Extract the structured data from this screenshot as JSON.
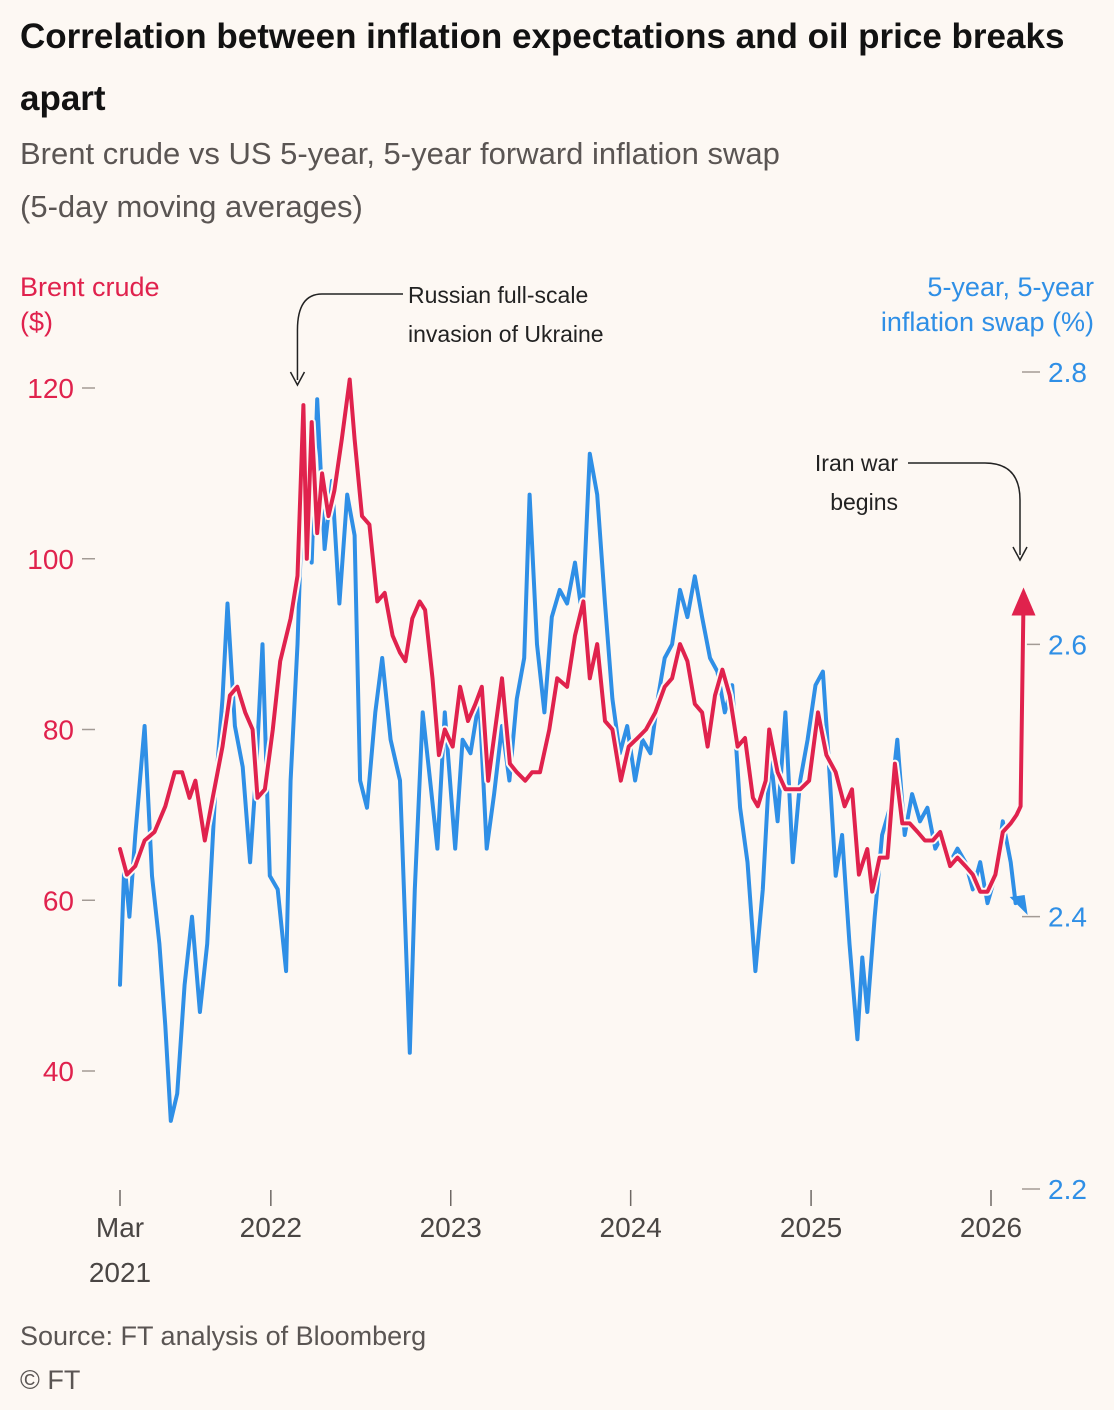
{
  "title": "Correlation between inflation expectations and oil price breaks apart",
  "subtitle_line1": "Brent crude vs US 5-year, 5-year forward inflation swap",
  "subtitle_line2": "(5-day moving averages)",
  "source": "Source: FT analysis of Bloomberg",
  "copyright": "© FT",
  "colors": {
    "brent": "#e0224d",
    "swap": "#2f8fe6",
    "background": "#fdf8f3"
  },
  "chart_data": {
    "type": "line",
    "left_axis": {
      "label_line1": "Brent crude",
      "label_line2": "($)",
      "ticks": [
        40,
        60,
        80,
        100,
        120
      ]
    },
    "right_axis": {
      "label_line1": "5-year,  5-year",
      "label_line2": "inflation swap (%)",
      "ticks": [
        2.2,
        2.4,
        2.6,
        2.8
      ]
    },
    "x_ticks": [
      {
        "date": "2021-03-01",
        "label": "Mar",
        "label2": "2021"
      },
      {
        "date": "2022-01-01",
        "label": "2022"
      },
      {
        "date": "2023-01-01",
        "label": "2023"
      },
      {
        "date": "2024-01-01",
        "label": "2024"
      },
      {
        "date": "2025-01-01",
        "label": "2025"
      },
      {
        "date": "2026-01-01",
        "label": "2026"
      }
    ],
    "annotations": [
      {
        "line1": "Russian full-scale",
        "line2": "invasion of Ukraine",
        "date": "2022-02-24"
      },
      {
        "line1": "Iran war",
        "line2": "begins",
        "date": "2026-03-01"
      }
    ],
    "series": [
      {
        "name": "Brent crude",
        "axis": "left",
        "points": [
          [
            "2021-03-01",
            66
          ],
          [
            "2021-03-15",
            63
          ],
          [
            "2021-04-01",
            64
          ],
          [
            "2021-04-20",
            67
          ],
          [
            "2021-05-10",
            68
          ],
          [
            "2021-06-01",
            71
          ],
          [
            "2021-06-20",
            75
          ],
          [
            "2021-07-05",
            75
          ],
          [
            "2021-07-20",
            72
          ],
          [
            "2021-08-01",
            74
          ],
          [
            "2021-08-20",
            67
          ],
          [
            "2021-09-05",
            72
          ],
          [
            "2021-09-25",
            78
          ],
          [
            "2021-10-10",
            84
          ],
          [
            "2021-10-25",
            85
          ],
          [
            "2021-11-10",
            82
          ],
          [
            "2021-11-25",
            80
          ],
          [
            "2021-12-05",
            72
          ],
          [
            "2021-12-20",
            73
          ],
          [
            "2022-01-05",
            80
          ],
          [
            "2022-01-20",
            88
          ],
          [
            "2022-02-10",
            93
          ],
          [
            "2022-02-24",
            98
          ],
          [
            "2022-03-08",
            118
          ],
          [
            "2022-03-15",
            100
          ],
          [
            "2022-03-25",
            116
          ],
          [
            "2022-04-05",
            103
          ],
          [
            "2022-04-15",
            110
          ],
          [
            "2022-04-28",
            105
          ],
          [
            "2022-05-10",
            108
          ],
          [
            "2022-05-25",
            114
          ],
          [
            "2022-06-10",
            121
          ],
          [
            "2022-06-20",
            114
          ],
          [
            "2022-07-05",
            105
          ],
          [
            "2022-07-20",
            104
          ],
          [
            "2022-08-05",
            95
          ],
          [
            "2022-08-20",
            96
          ],
          [
            "2022-09-05",
            91
          ],
          [
            "2022-09-20",
            89
          ],
          [
            "2022-10-01",
            88
          ],
          [
            "2022-10-15",
            93
          ],
          [
            "2022-10-30",
            95
          ],
          [
            "2022-11-10",
            94
          ],
          [
            "2022-11-25",
            86
          ],
          [
            "2022-12-08",
            77
          ],
          [
            "2022-12-20",
            80
          ],
          [
            "2023-01-05",
            78
          ],
          [
            "2023-01-20",
            85
          ],
          [
            "2023-02-05",
            81
          ],
          [
            "2023-02-20",
            83
          ],
          [
            "2023-03-05",
            85
          ],
          [
            "2023-03-18",
            74
          ],
          [
            "2023-04-01",
            80
          ],
          [
            "2023-04-15",
            86
          ],
          [
            "2023-05-01",
            76
          ],
          [
            "2023-05-15",
            75
          ],
          [
            "2023-06-01",
            74
          ],
          [
            "2023-06-15",
            75
          ],
          [
            "2023-07-01",
            75
          ],
          [
            "2023-07-20",
            80
          ],
          [
            "2023-08-05",
            86
          ],
          [
            "2023-08-25",
            85
          ],
          [
            "2023-09-10",
            91
          ],
          [
            "2023-09-27",
            95
          ],
          [
            "2023-10-10",
            86
          ],
          [
            "2023-10-25",
            90
          ],
          [
            "2023-11-10",
            81
          ],
          [
            "2023-11-25",
            80
          ],
          [
            "2023-12-12",
            74
          ],
          [
            "2023-12-28",
            78
          ],
          [
            "2024-01-15",
            79
          ],
          [
            "2024-02-01",
            80
          ],
          [
            "2024-02-20",
            82
          ],
          [
            "2024-03-10",
            85
          ],
          [
            "2024-03-25",
            86
          ],
          [
            "2024-04-10",
            90
          ],
          [
            "2024-04-25",
            88
          ],
          [
            "2024-05-10",
            83
          ],
          [
            "2024-05-25",
            82
          ],
          [
            "2024-06-05",
            78
          ],
          [
            "2024-06-20",
            84
          ],
          [
            "2024-07-05",
            87
          ],
          [
            "2024-07-20",
            84
          ],
          [
            "2024-08-05",
            78
          ],
          [
            "2024-08-20",
            79
          ],
          [
            "2024-09-05",
            72
          ],
          [
            "2024-09-15",
            71
          ],
          [
            "2024-10-01",
            74
          ],
          [
            "2024-10-08",
            80
          ],
          [
            "2024-10-25",
            75
          ],
          [
            "2024-11-10",
            73
          ],
          [
            "2024-11-25",
            73
          ],
          [
            "2024-12-10",
            73
          ],
          [
            "2024-12-28",
            74
          ],
          [
            "2025-01-15",
            82
          ],
          [
            "2025-02-01",
            77
          ],
          [
            "2025-02-20",
            75
          ],
          [
            "2025-03-10",
            71
          ],
          [
            "2025-03-25",
            73
          ],
          [
            "2025-04-08",
            63
          ],
          [
            "2025-04-25",
            66
          ],
          [
            "2025-05-05",
            61
          ],
          [
            "2025-05-20",
            65
          ],
          [
            "2025-06-05",
            65
          ],
          [
            "2025-06-20",
            76
          ],
          [
            "2025-07-05",
            69
          ],
          [
            "2025-07-20",
            69
          ],
          [
            "2025-08-05",
            68
          ],
          [
            "2025-08-20",
            67
          ],
          [
            "2025-09-05",
            67
          ],
          [
            "2025-09-20",
            68
          ],
          [
            "2025-10-10",
            64
          ],
          [
            "2025-10-25",
            65
          ],
          [
            "2025-11-10",
            64
          ],
          [
            "2025-11-25",
            63
          ],
          [
            "2025-12-10",
            61
          ],
          [
            "2025-12-25",
            61
          ],
          [
            "2026-01-10",
            63
          ],
          [
            "2026-01-25",
            68
          ],
          [
            "2026-02-10",
            69
          ],
          [
            "2026-02-22",
            70
          ],
          [
            "2026-03-02",
            71
          ],
          [
            "2026-03-08",
            95
          ]
        ]
      },
      {
        "name": "5-year, 5-year inflation swap",
        "axis": "right",
        "points": [
          [
            "2021-03-01",
            2.35
          ],
          [
            "2021-03-10",
            2.44
          ],
          [
            "2021-03-20",
            2.4
          ],
          [
            "2021-04-01",
            2.46
          ],
          [
            "2021-04-20",
            2.54
          ],
          [
            "2021-05-05",
            2.43
          ],
          [
            "2021-05-20",
            2.38
          ],
          [
            "2021-06-01",
            2.32
          ],
          [
            "2021-06-12",
            2.25
          ],
          [
            "2021-06-25",
            2.27
          ],
          [
            "2021-07-10",
            2.35
          ],
          [
            "2021-07-25",
            2.4
          ],
          [
            "2021-08-10",
            2.33
          ],
          [
            "2021-08-25",
            2.38
          ],
          [
            "2021-09-10",
            2.49
          ],
          [
            "2021-09-25",
            2.56
          ],
          [
            "2021-10-05",
            2.63
          ],
          [
            "2021-10-20",
            2.54
          ],
          [
            "2021-11-05",
            2.51
          ],
          [
            "2021-11-20",
            2.44
          ],
          [
            "2021-12-01",
            2.5
          ],
          [
            "2021-12-15",
            2.6
          ],
          [
            "2021-12-30",
            2.43
          ],
          [
            "2022-01-15",
            2.42
          ],
          [
            "2022-02-01",
            2.36
          ],
          [
            "2022-02-10",
            2.5
          ],
          [
            "2022-02-24",
            2.6
          ],
          [
            "2022-03-10",
            2.75
          ],
          [
            "2022-03-25",
            2.66
          ],
          [
            "2022-04-05",
            2.78
          ],
          [
            "2022-04-20",
            2.67
          ],
          [
            "2022-05-05",
            2.72
          ],
          [
            "2022-05-20",
            2.63
          ],
          [
            "2022-06-05",
            2.71
          ],
          [
            "2022-06-20",
            2.68
          ],
          [
            "2022-07-01",
            2.5
          ],
          [
            "2022-07-15",
            2.48
          ],
          [
            "2022-08-01",
            2.55
          ],
          [
            "2022-08-15",
            2.59
          ],
          [
            "2022-09-01",
            2.53
          ],
          [
            "2022-09-20",
            2.5
          ],
          [
            "2022-10-01",
            2.39
          ],
          [
            "2022-10-10",
            2.3
          ],
          [
            "2022-10-20",
            2.42
          ],
          [
            "2022-11-05",
            2.55
          ],
          [
            "2022-11-20",
            2.5
          ],
          [
            "2022-12-05",
            2.45
          ],
          [
            "2022-12-20",
            2.55
          ],
          [
            "2023-01-10",
            2.45
          ],
          [
            "2023-01-25",
            2.53
          ],
          [
            "2023-02-10",
            2.52
          ],
          [
            "2023-02-28",
            2.56
          ],
          [
            "2023-03-15",
            2.45
          ],
          [
            "2023-03-30",
            2.49
          ],
          [
            "2023-04-15",
            2.54
          ],
          [
            "2023-04-30",
            2.5
          ],
          [
            "2023-05-15",
            2.56
          ],
          [
            "2023-05-30",
            2.59
          ],
          [
            "2023-06-10",
            2.71
          ],
          [
            "2023-06-25",
            2.6
          ],
          [
            "2023-07-10",
            2.55
          ],
          [
            "2023-07-25",
            2.62
          ],
          [
            "2023-08-10",
            2.64
          ],
          [
            "2023-08-25",
            2.63
          ],
          [
            "2023-09-10",
            2.66
          ],
          [
            "2023-09-25",
            2.62
          ],
          [
            "2023-10-10",
            2.74
          ],
          [
            "2023-10-25",
            2.71
          ],
          [
            "2023-11-10",
            2.63
          ],
          [
            "2023-11-25",
            2.56
          ],
          [
            "2023-12-10",
            2.52
          ],
          [
            "2023-12-25",
            2.54
          ],
          [
            "2024-01-10",
            2.5
          ],
          [
            "2024-01-25",
            2.53
          ],
          [
            "2024-02-10",
            2.52
          ],
          [
            "2024-02-25",
            2.56
          ],
          [
            "2024-03-10",
            2.59
          ],
          [
            "2024-03-25",
            2.6
          ],
          [
            "2024-04-10",
            2.64
          ],
          [
            "2024-04-25",
            2.62
          ],
          [
            "2024-05-10",
            2.65
          ],
          [
            "2024-05-25",
            2.62
          ],
          [
            "2024-06-10",
            2.59
          ],
          [
            "2024-06-25",
            2.58
          ],
          [
            "2024-07-10",
            2.55
          ],
          [
            "2024-07-25",
            2.57
          ],
          [
            "2024-08-10",
            2.48
          ],
          [
            "2024-08-25",
            2.44
          ],
          [
            "2024-09-10",
            2.36
          ],
          [
            "2024-09-25",
            2.42
          ],
          [
            "2024-10-10",
            2.52
          ],
          [
            "2024-10-25",
            2.47
          ],
          [
            "2024-11-10",
            2.55
          ],
          [
            "2024-11-25",
            2.44
          ],
          [
            "2024-12-10",
            2.5
          ],
          [
            "2024-12-25",
            2.53
          ],
          [
            "2025-01-10",
            2.57
          ],
          [
            "2025-01-25",
            2.58
          ],
          [
            "2025-02-05",
            2.52
          ],
          [
            "2025-02-20",
            2.43
          ],
          [
            "2025-03-05",
            2.46
          ],
          [
            "2025-03-20",
            2.38
          ],
          [
            "2025-04-05",
            2.31
          ],
          [
            "2025-04-15",
            2.37
          ],
          [
            "2025-04-25",
            2.33
          ],
          [
            "2025-05-10",
            2.4
          ],
          [
            "2025-05-25",
            2.46
          ],
          [
            "2025-06-10",
            2.48
          ],
          [
            "2025-06-25",
            2.53
          ],
          [
            "2025-07-10",
            2.46
          ],
          [
            "2025-07-25",
            2.49
          ],
          [
            "2025-08-10",
            2.47
          ],
          [
            "2025-08-25",
            2.48
          ],
          [
            "2025-09-10",
            2.45
          ],
          [
            "2025-09-25",
            2.46
          ],
          [
            "2025-10-10",
            2.44
          ],
          [
            "2025-10-25",
            2.45
          ],
          [
            "2025-11-10",
            2.44
          ],
          [
            "2025-11-25",
            2.42
          ],
          [
            "2025-12-10",
            2.44
          ],
          [
            "2025-12-25",
            2.41
          ],
          [
            "2026-01-10",
            2.43
          ],
          [
            "2026-01-25",
            2.47
          ],
          [
            "2026-02-10",
            2.44
          ],
          [
            "2026-02-20",
            2.41
          ]
        ]
      }
    ]
  }
}
